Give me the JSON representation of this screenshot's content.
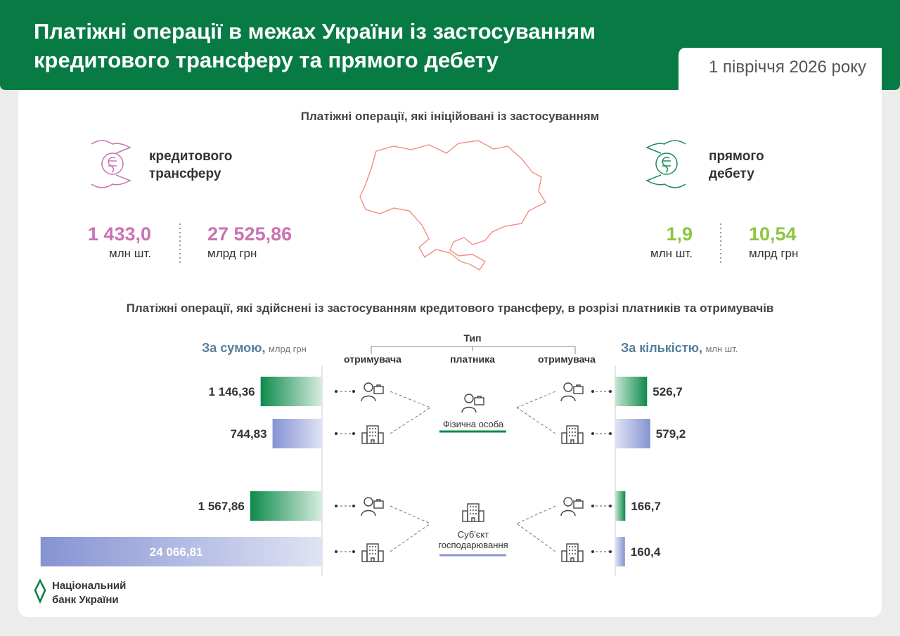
{
  "header": {
    "title": "Платіжні операції в межах України із застосуванням кредитового трансферу та прямого дебету",
    "period": "1 півріччя 2026 року"
  },
  "initiated": {
    "heading": "Платіжні операції, які ініційовані із застосуванням",
    "credit": {
      "label": "кредитового трансферу",
      "count": "1 433,0",
      "count_unit": "млн шт.",
      "amount": "27 525,86",
      "amount_unit": "млрд грн",
      "color": "#c973b2"
    },
    "debit": {
      "label": "прямого дебету",
      "count": "1,9",
      "count_unit": "млн шт.",
      "amount": "10,54",
      "amount_unit": "млрд грн",
      "color": "#8cc63f"
    }
  },
  "breakdown": {
    "heading": "Платіжні операції, які здійснені із застосуванням кредитового трансферу, в розрізі платників та отримувачів",
    "type_label": "Тип",
    "recipient_label": "отримувача",
    "payer_label": "платника",
    "payers": [
      "Фізична особа",
      "Суб'єкт господарювання"
    ],
    "payer_colors": [
      "#0a8a4a",
      "#8a98d4"
    ],
    "recipients": [
      "person",
      "company",
      "person",
      "company"
    ],
    "amount": {
      "title": "За сумою,",
      "unit": "млрд грн",
      "scale": "sqrt",
      "values": [
        1146.36,
        744.83,
        1567.86,
        24066.81
      ],
      "value_labels": [
        "1 146,36",
        "744,83",
        "1 567,86",
        "24 066,81"
      ]
    },
    "count": {
      "title": "За кількістю,",
      "unit": "млн шт.",
      "scale": "linear",
      "values": [
        526.7,
        579.2,
        166.7,
        160.4
      ],
      "value_labels": [
        "526,7",
        "579,2",
        "166,7",
        "160,4"
      ]
    },
    "row_colors": [
      "green",
      "blue",
      "green",
      "blue"
    ]
  },
  "footer": {
    "logo_line1": "Національний",
    "logo_line2": "банк України"
  }
}
